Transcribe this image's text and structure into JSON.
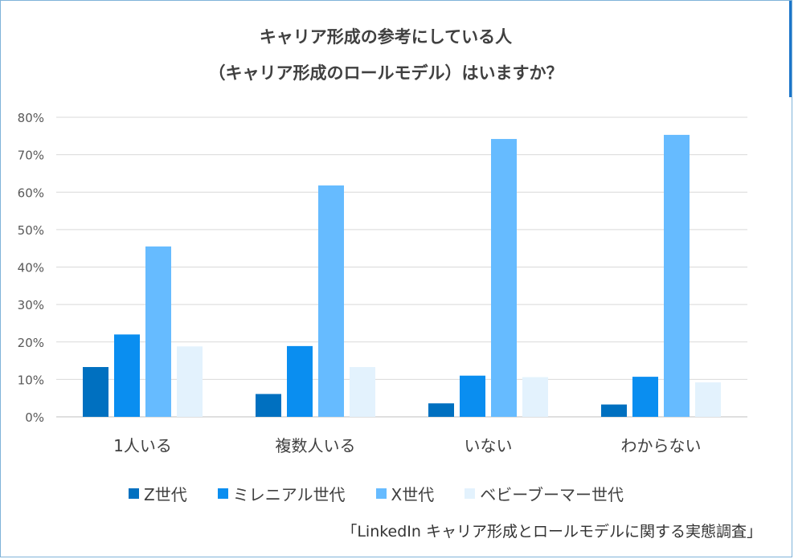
{
  "chart_data": {
    "type": "bar",
    "title": "キャリア形成の参考にしている人",
    "subtitle": "（キャリア形成のロールモデル）はいますか？",
    "categories": [
      "1人いる",
      "複数人いる",
      "いない",
      "わからない"
    ],
    "series": [
      {
        "name": "Z世代",
        "color": "#0070c0",
        "values": [
          13.3,
          6.1,
          3.6,
          3.3
        ]
      },
      {
        "name": "ミレニアル世代",
        "color": "#0a8ef0",
        "values": [
          22.0,
          18.9,
          11.0,
          10.7
        ]
      },
      {
        "name": "X世代",
        "color": "#66bbff",
        "values": [
          45.5,
          61.8,
          74.2,
          75.3
        ]
      },
      {
        "name": "ベビーブーマー世代",
        "color": "#e3f2fd",
        "values": [
          18.8,
          13.3,
          10.6,
          9.2
        ]
      }
    ],
    "yticks": [
      "0%",
      "10%",
      "20%",
      "30%",
      "40%",
      "50%",
      "60%",
      "70%",
      "80%"
    ],
    "ylim": [
      0,
      80
    ],
    "grid": true,
    "legend": "bottom",
    "source": "「LinkedIn キャリア形成とロールモデルに関する実態調査」"
  }
}
